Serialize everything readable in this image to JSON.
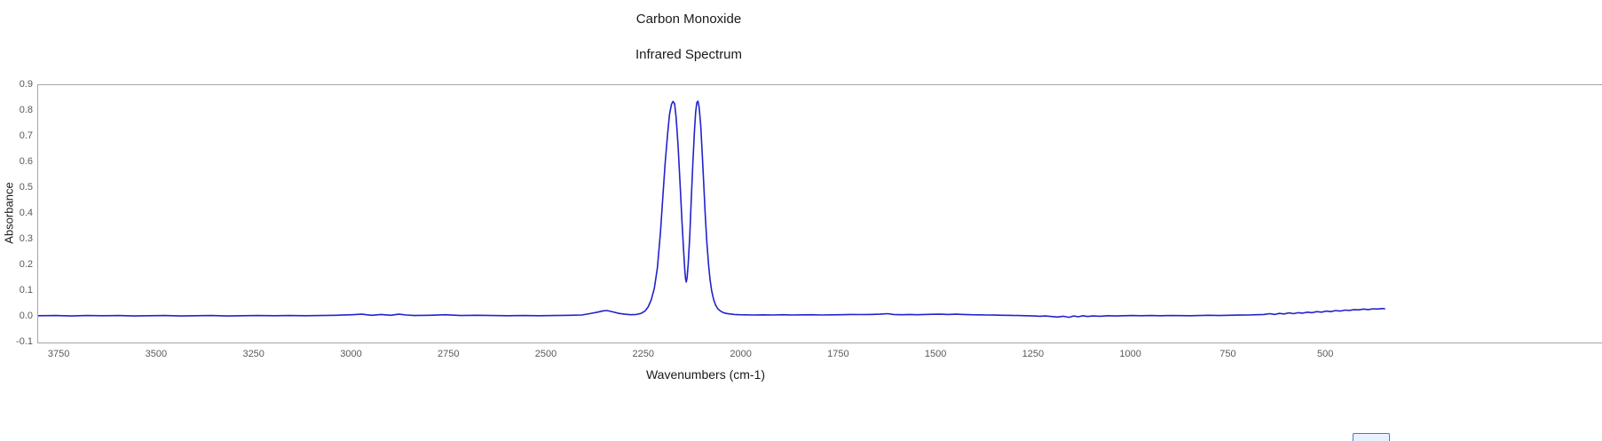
{
  "chart_data": {
    "type": "line",
    "title": "Carbon Monoxide",
    "subtitle": "Infrared Spectrum",
    "xlabel": "Wavenumbers (cm-1)",
    "ylabel": "Absorbance",
    "x_axis_reversed": true,
    "xlim_view": [
      3805,
      -210
    ],
    "ylim": [
      -0.1,
      0.9
    ],
    "x_ticks": [
      3750,
      3500,
      3250,
      3000,
      2750,
      2500,
      2250,
      2000,
      1750,
      1500,
      1250,
      1000,
      750,
      500
    ],
    "y_tick_labels": [
      "0.9",
      "0.8",
      "0.7",
      "0.6",
      "0.5",
      "0.4",
      "0.3",
      "0.2",
      "0.1",
      "0.0",
      "-0.1"
    ],
    "grid": false,
    "legend": false,
    "line_color": "#2222cc",
    "series": [
      {
        "name": "absorbance",
        "points": [
          [
            3805,
            0.004
          ],
          [
            3760,
            0.005
          ],
          [
            3720,
            0.003
          ],
          [
            3680,
            0.005
          ],
          [
            3640,
            0.004
          ],
          [
            3600,
            0.005
          ],
          [
            3560,
            0.003
          ],
          [
            3520,
            0.004
          ],
          [
            3480,
            0.005
          ],
          [
            3440,
            0.003
          ],
          [
            3400,
            0.004
          ],
          [
            3360,
            0.005
          ],
          [
            3320,
            0.003
          ],
          [
            3280,
            0.004
          ],
          [
            3240,
            0.005
          ],
          [
            3200,
            0.004
          ],
          [
            3160,
            0.005
          ],
          [
            3120,
            0.004
          ],
          [
            3080,
            0.005
          ],
          [
            3040,
            0.006
          ],
          [
            3000,
            0.008
          ],
          [
            2975,
            0.01
          ],
          [
            2950,
            0.006
          ],
          [
            2925,
            0.009
          ],
          [
            2900,
            0.006
          ],
          [
            2880,
            0.01
          ],
          [
            2860,
            0.007
          ],
          [
            2840,
            0.005
          ],
          [
            2800,
            0.006
          ],
          [
            2760,
            0.008
          ],
          [
            2720,
            0.005
          ],
          [
            2680,
            0.006
          ],
          [
            2640,
            0.005
          ],
          [
            2600,
            0.004
          ],
          [
            2560,
            0.005
          ],
          [
            2520,
            0.004
          ],
          [
            2480,
            0.005
          ],
          [
            2440,
            0.006
          ],
          [
            2410,
            0.007
          ],
          [
            2390,
            0.012
          ],
          [
            2370,
            0.018
          ],
          [
            2355,
            0.023
          ],
          [
            2345,
            0.024
          ],
          [
            2330,
            0.019
          ],
          [
            2315,
            0.013
          ],
          [
            2300,
            0.01
          ],
          [
            2285,
            0.008
          ],
          [
            2270,
            0.009
          ],
          [
            2258,
            0.013
          ],
          [
            2248,
            0.022
          ],
          [
            2240,
            0.038
          ],
          [
            2232,
            0.065
          ],
          [
            2224,
            0.11
          ],
          [
            2216,
            0.19
          ],
          [
            2208,
            0.33
          ],
          [
            2202,
            0.47
          ],
          [
            2196,
            0.6
          ],
          [
            2190,
            0.71
          ],
          [
            2185,
            0.785
          ],
          [
            2180,
            0.825
          ],
          [
            2176,
            0.837
          ],
          [
            2172,
            0.828
          ],
          [
            2168,
            0.775
          ],
          [
            2163,
            0.665
          ],
          [
            2158,
            0.52
          ],
          [
            2153,
            0.37
          ],
          [
            2149,
            0.26
          ],
          [
            2146,
            0.185
          ],
          [
            2144,
            0.148
          ],
          [
            2142,
            0.135
          ],
          [
            2140,
            0.15
          ],
          [
            2137,
            0.205
          ],
          [
            2133,
            0.315
          ],
          [
            2129,
            0.46
          ],
          [
            2125,
            0.6
          ],
          [
            2121,
            0.725
          ],
          [
            2118,
            0.795
          ],
          [
            2115,
            0.832
          ],
          [
            2112,
            0.838
          ],
          [
            2109,
            0.815
          ],
          [
            2105,
            0.745
          ],
          [
            2101,
            0.635
          ],
          [
            2097,
            0.51
          ],
          [
            2093,
            0.39
          ],
          [
            2089,
            0.285
          ],
          [
            2085,
            0.205
          ],
          [
            2081,
            0.145
          ],
          [
            2077,
            0.102
          ],
          [
            2072,
            0.068
          ],
          [
            2067,
            0.046
          ],
          [
            2061,
            0.031
          ],
          [
            2055,
            0.023
          ],
          [
            2048,
            0.017
          ],
          [
            2040,
            0.013
          ],
          [
            2030,
            0.011
          ],
          [
            2018,
            0.009
          ],
          [
            2005,
            0.008
          ],
          [
            1990,
            0.0075
          ],
          [
            1970,
            0.007
          ],
          [
            1945,
            0.0075
          ],
          [
            1920,
            0.007
          ],
          [
            1895,
            0.008
          ],
          [
            1870,
            0.007
          ],
          [
            1845,
            0.0075
          ],
          [
            1820,
            0.008
          ],
          [
            1795,
            0.007
          ],
          [
            1770,
            0.0075
          ],
          [
            1745,
            0.008
          ],
          [
            1720,
            0.009
          ],
          [
            1695,
            0.0085
          ],
          [
            1670,
            0.009
          ],
          [
            1645,
            0.01
          ],
          [
            1625,
            0.012
          ],
          [
            1610,
            0.009
          ],
          [
            1590,
            0.008
          ],
          [
            1570,
            0.009
          ],
          [
            1550,
            0.008
          ],
          [
            1530,
            0.009
          ],
          [
            1510,
            0.0095
          ],
          [
            1490,
            0.01
          ],
          [
            1470,
            0.009
          ],
          [
            1450,
            0.01
          ],
          [
            1430,
            0.009
          ],
          [
            1410,
            0.008
          ],
          [
            1390,
            0.0075
          ],
          [
            1370,
            0.007
          ],
          [
            1350,
            0.0065
          ],
          [
            1330,
            0.006
          ],
          [
            1310,
            0.0055
          ],
          [
            1290,
            0.005
          ],
          [
            1270,
            0.004
          ],
          [
            1250,
            0.003
          ],
          [
            1235,
            0.002
          ],
          [
            1220,
            0.003
          ],
          [
            1205,
            0.001
          ],
          [
            1190,
            -0.001
          ],
          [
            1175,
            0.002
          ],
          [
            1160,
            -0.002
          ],
          [
            1148,
            0.003
          ],
          [
            1136,
            0.0
          ],
          [
            1124,
            0.004
          ],
          [
            1112,
            0.001
          ],
          [
            1100,
            0.003
          ],
          [
            1080,
            0.002
          ],
          [
            1060,
            0.004
          ],
          [
            1040,
            0.003
          ],
          [
            1020,
            0.004
          ],
          [
            1000,
            0.005
          ],
          [
            975,
            0.004
          ],
          [
            950,
            0.005
          ],
          [
            925,
            0.004
          ],
          [
            900,
            0.005
          ],
          [
            875,
            0.0045
          ],
          [
            850,
            0.004
          ],
          [
            825,
            0.005
          ],
          [
            800,
            0.006
          ],
          [
            775,
            0.005
          ],
          [
            750,
            0.006
          ],
          [
            725,
            0.0065
          ],
          [
            700,
            0.007
          ],
          [
            680,
            0.008
          ],
          [
            660,
            0.009
          ],
          [
            645,
            0.012
          ],
          [
            632,
            0.009
          ],
          [
            620,
            0.013
          ],
          [
            608,
            0.011
          ],
          [
            596,
            0.015
          ],
          [
            584,
            0.012
          ],
          [
            572,
            0.016
          ],
          [
            560,
            0.014
          ],
          [
            548,
            0.018
          ],
          [
            536,
            0.016
          ],
          [
            524,
            0.02
          ],
          [
            512,
            0.018
          ],
          [
            500,
            0.022
          ],
          [
            488,
            0.02
          ],
          [
            476,
            0.024
          ],
          [
            464,
            0.022
          ],
          [
            452,
            0.026
          ],
          [
            440,
            0.025
          ],
          [
            428,
            0.028
          ],
          [
            416,
            0.027
          ],
          [
            404,
            0.03
          ],
          [
            392,
            0.028
          ],
          [
            380,
            0.031
          ],
          [
            368,
            0.03
          ],
          [
            356,
            0.032
          ],
          [
            350,
            0.031
          ]
        ]
      }
    ]
  }
}
